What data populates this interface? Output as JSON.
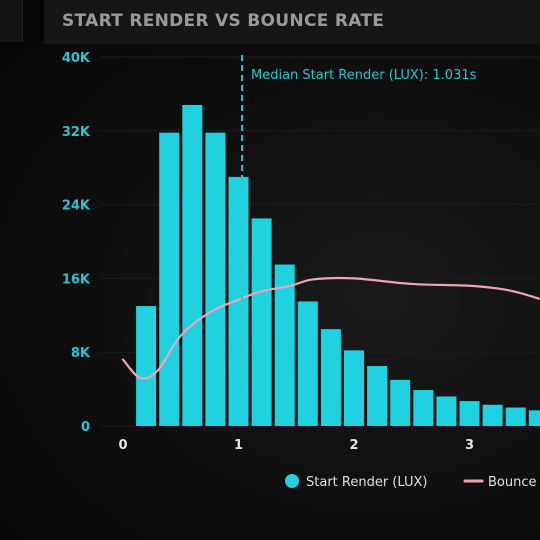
{
  "chart_data": {
    "type": "bar",
    "title": "START RENDER VS BOUNCE RATE",
    "xlabel": "",
    "ylabel": "",
    "ylim": [
      0,
      40000
    ],
    "xlim": [
      0,
      3.6
    ],
    "y_ticks": [
      "0",
      "8K",
      "16K",
      "24K",
      "32K",
      "40K"
    ],
    "y_tick_values": [
      0,
      8000,
      16000,
      24000,
      32000,
      40000
    ],
    "x_ticks": [
      "0",
      "1",
      "2",
      "3"
    ],
    "x_tick_values": [
      0,
      1,
      2,
      3
    ],
    "grid": true,
    "legend_position": "bottom",
    "series": [
      {
        "name": "Start Render (LUX)",
        "kind": "bar",
        "color": "#20d2df",
        "x": [
          0.2,
          0.4,
          0.6,
          0.8,
          1.0,
          1.2,
          1.4,
          1.6,
          1.8,
          2.0,
          2.2,
          2.4,
          2.6,
          2.8,
          3.0,
          3.2,
          3.4,
          3.6
        ],
        "values": [
          13000,
          31800,
          34800,
          31800,
          27000,
          22500,
          17500,
          13500,
          10500,
          8200,
          6500,
          5000,
          3900,
          3200,
          2700,
          2300,
          2000,
          1700
        ]
      },
      {
        "name": "Bounce",
        "kind": "line",
        "color": "#f2a3b3",
        "x": [
          0.0,
          0.15,
          0.3,
          0.5,
          0.75,
          1.0,
          1.2,
          1.45,
          1.65,
          2.0,
          2.5,
          3.0,
          3.3,
          3.5,
          3.6
        ],
        "values": [
          7200,
          5200,
          6000,
          9800,
          12300,
          13700,
          14600,
          15200,
          15900,
          16000,
          15400,
          15200,
          14800,
          14200,
          13800
        ]
      }
    ],
    "annotations": [
      {
        "type": "vline",
        "x": 1.031,
        "text": "Median Start Render (LUX): 1.031s",
        "color": "#29c5d3"
      }
    ]
  }
}
